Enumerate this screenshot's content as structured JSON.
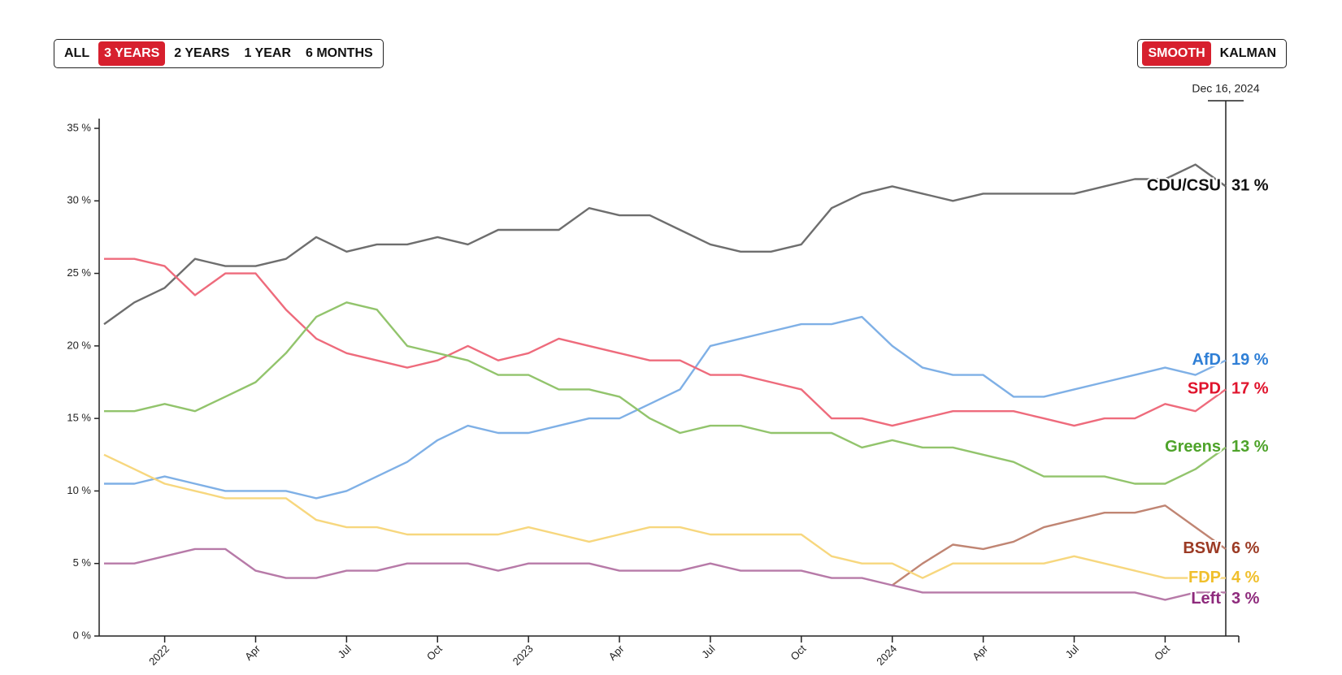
{
  "controls": {
    "range_buttons": [
      "ALL",
      "3 YEARS",
      "2 YEARS",
      "1 YEAR",
      "6 MONTHS"
    ],
    "range_active": 1,
    "method_buttons": [
      "SMOOTH",
      "KALMAN"
    ],
    "method_active": 0
  },
  "chart_data": {
    "type": "line",
    "date_label": "Dec 16, 2024",
    "x": [
      "2021-11",
      "2021-12",
      "2022-01",
      "2022-02",
      "2022-03",
      "2022-04",
      "2022-05",
      "2022-06",
      "2022-07",
      "2022-08",
      "2022-09",
      "2022-10",
      "2022-11",
      "2022-12",
      "2023-01",
      "2023-02",
      "2023-03",
      "2023-04",
      "2023-05",
      "2023-06",
      "2023-07",
      "2023-08",
      "2023-09",
      "2023-10",
      "2023-11",
      "2023-12",
      "2024-01",
      "2024-02",
      "2024-03",
      "2024-04",
      "2024-05",
      "2024-06",
      "2024-07",
      "2024-08",
      "2024-09",
      "2024-10",
      "2024-11",
      "2024-12"
    ],
    "xlim": [
      "2021-11",
      "2024-12"
    ],
    "xticks": [
      {
        "value": "2022-01",
        "label": "2022"
      },
      {
        "value": "2022-04",
        "label": "Apr"
      },
      {
        "value": "2022-07",
        "label": "Jul"
      },
      {
        "value": "2022-10",
        "label": "Oct"
      },
      {
        "value": "2023-01",
        "label": "2023"
      },
      {
        "value": "2023-04",
        "label": "Apr"
      },
      {
        "value": "2023-07",
        "label": "Jul"
      },
      {
        "value": "2023-10",
        "label": "Oct"
      },
      {
        "value": "2024-01",
        "label": "2024"
      },
      {
        "value": "2024-04",
        "label": "Apr"
      },
      {
        "value": "2024-07",
        "label": "Jul"
      },
      {
        "value": "2024-10",
        "label": "Oct"
      }
    ],
    "ylim": [
      0,
      35
    ],
    "yticks": [
      {
        "value": 0,
        "label": "0 %"
      },
      {
        "value": 5,
        "label": "5 %"
      },
      {
        "value": 10,
        "label": "10 %"
      },
      {
        "value": 15,
        "label": "15 %"
      },
      {
        "value": 20,
        "label": "20 %"
      },
      {
        "value": 25,
        "label": "25 %"
      },
      {
        "value": 30,
        "label": "30 %"
      },
      {
        "value": 35,
        "label": "35 %"
      }
    ],
    "series": [
      {
        "name": "CDU/CSU",
        "color": "#6e6e6e",
        "label_color": "#111111",
        "values": [
          21.5,
          23,
          24,
          26,
          25.5,
          25.5,
          26,
          27.5,
          26.5,
          27,
          27,
          27.5,
          27,
          28,
          28,
          28,
          29.5,
          29,
          29,
          28,
          27,
          26.5,
          26.5,
          27,
          29.5,
          30.5,
          31,
          30.5,
          30,
          30.5,
          30.5,
          30.5,
          30.5,
          31,
          31.5,
          31.5,
          32.5,
          31
        ],
        "value_labels": [
          null,
          null,
          null,
          null,
          null,
          null,
          null,
          null,
          null,
          null,
          null,
          null,
          null,
          null,
          null,
          null,
          null,
          null,
          null,
          null,
          null,
          null,
          null,
          null,
          null,
          null,
          null,
          null,
          null,
          null,
          null,
          null,
          null,
          null,
          null,
          null,
          null,
          "31 %"
        ]
      },
      {
        "name": "AfD",
        "color": "#7fb0e6",
        "label_color": "#2f7fd6",
        "values": [
          10.5,
          10.5,
          11,
          10.5,
          10,
          10,
          10,
          9.5,
          10,
          11,
          12,
          13.5,
          14.5,
          14,
          14,
          14.5,
          15,
          15,
          16,
          17,
          20,
          20.5,
          21,
          21.5,
          21.5,
          22,
          20,
          18.5,
          18,
          18,
          16.5,
          16.5,
          17,
          17.5,
          18,
          18.5,
          18,
          19
        ],
        "value_labels": [
          null,
          null,
          null,
          null,
          null,
          null,
          null,
          null,
          null,
          null,
          null,
          null,
          null,
          null,
          null,
          null,
          null,
          null,
          null,
          null,
          null,
          null,
          null,
          null,
          null,
          null,
          null,
          null,
          null,
          null,
          null,
          null,
          null,
          null,
          null,
          null,
          null,
          "19 %"
        ]
      },
      {
        "name": "SPD",
        "color": "#ee6b7c",
        "label_color": "#e0142d",
        "values": [
          26,
          26,
          25.5,
          23.5,
          25,
          25,
          22.5,
          20.5,
          19.5,
          19,
          18.5,
          19,
          20,
          19,
          19.5,
          20.5,
          20,
          19.5,
          19,
          19,
          18,
          18,
          17.5,
          17,
          15,
          15,
          14.5,
          15,
          15.5,
          15.5,
          15.5,
          15,
          14.5,
          15,
          15,
          16,
          15.5,
          17
        ],
        "value_labels": [
          null,
          null,
          null,
          null,
          null,
          null,
          null,
          null,
          null,
          null,
          null,
          null,
          null,
          null,
          null,
          null,
          null,
          null,
          null,
          null,
          null,
          null,
          null,
          null,
          null,
          null,
          null,
          null,
          null,
          null,
          null,
          null,
          null,
          null,
          null,
          null,
          null,
          "17 %"
        ]
      },
      {
        "name": "Greens",
        "color": "#92c46c",
        "label_color": "#4ea32a",
        "values": [
          15.5,
          15.5,
          16,
          15.5,
          16.5,
          17.5,
          19.5,
          22,
          23,
          22.5,
          20,
          19.5,
          19,
          18,
          18,
          17,
          17,
          16.5,
          15,
          14,
          14.5,
          14.5,
          14,
          14,
          14,
          13,
          13.5,
          13,
          13,
          12.5,
          12,
          11,
          11,
          11,
          10.5,
          10.5,
          11.5,
          13
        ],
        "value_labels": [
          null,
          null,
          null,
          null,
          null,
          null,
          null,
          null,
          null,
          null,
          null,
          null,
          null,
          null,
          null,
          null,
          null,
          null,
          null,
          null,
          null,
          null,
          null,
          null,
          null,
          null,
          null,
          null,
          null,
          null,
          null,
          null,
          null,
          null,
          null,
          null,
          null,
          "13 %"
        ]
      },
      {
        "name": "BSW",
        "color": "#c08573",
        "label_color": "#9c3b25",
        "values": [
          null,
          null,
          null,
          null,
          null,
          null,
          null,
          null,
          null,
          null,
          null,
          null,
          null,
          null,
          null,
          null,
          null,
          null,
          null,
          null,
          null,
          null,
          null,
          null,
          null,
          null,
          3.5,
          5,
          6.3,
          6,
          6.5,
          7.5,
          8,
          8.5,
          8.5,
          9,
          7.5,
          6
        ],
        "value_labels": [
          null,
          null,
          null,
          null,
          null,
          null,
          null,
          null,
          null,
          null,
          null,
          null,
          null,
          null,
          null,
          null,
          null,
          null,
          null,
          null,
          null,
          null,
          null,
          null,
          null,
          null,
          null,
          null,
          null,
          null,
          null,
          null,
          null,
          null,
          null,
          null,
          null,
          "6 %"
        ]
      },
      {
        "name": "FDP",
        "color": "#f7d77e",
        "label_color": "#f0bf2c",
        "values": [
          12.5,
          11.5,
          10.5,
          10,
          9.5,
          9.5,
          9.5,
          8,
          7.5,
          7.5,
          7,
          7,
          7,
          7,
          7.5,
          7,
          6.5,
          7,
          7.5,
          7.5,
          7,
          7,
          7,
          7,
          5.5,
          5,
          5,
          4,
          5,
          5,
          5,
          5,
          5.5,
          5,
          4.5,
          4,
          4,
          4
        ],
        "value_labels": [
          null,
          null,
          null,
          null,
          null,
          null,
          null,
          null,
          null,
          null,
          null,
          null,
          null,
          null,
          null,
          null,
          null,
          null,
          null,
          null,
          null,
          null,
          null,
          null,
          null,
          null,
          null,
          null,
          null,
          null,
          null,
          null,
          null,
          null,
          null,
          null,
          null,
          "4 %"
        ]
      },
      {
        "name": "Left",
        "color": "#b77aa8",
        "label_color": "#8e2a7c",
        "values": [
          5,
          5,
          5.5,
          6,
          6,
          4.5,
          4,
          4,
          4.5,
          4.5,
          5,
          5,
          5,
          4.5,
          5,
          5,
          5,
          4.5,
          4.5,
          4.5,
          5,
          4.5,
          4.5,
          4.5,
          4,
          4,
          3.5,
          3,
          3,
          3,
          3,
          3,
          3,
          3,
          3,
          2.5,
          3,
          3
        ],
        "value_labels": [
          null,
          null,
          null,
          null,
          null,
          null,
          null,
          null,
          null,
          null,
          null,
          null,
          null,
          null,
          null,
          null,
          null,
          null,
          null,
          null,
          null,
          null,
          null,
          null,
          null,
          null,
          null,
          null,
          null,
          null,
          null,
          null,
          null,
          null,
          null,
          null,
          null,
          "3 %"
        ]
      }
    ]
  }
}
